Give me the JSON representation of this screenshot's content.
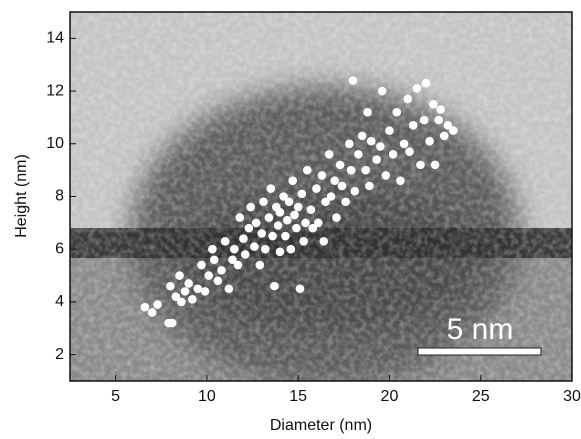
{
  "chart_data": {
    "type": "scatter",
    "xlabel": "Diameter (nm)",
    "ylabel": "Height (nm)",
    "annotation": "5 nm",
    "xlim": [
      2.5,
      30
    ],
    "ylim": [
      1,
      15
    ],
    "xticks": [
      5,
      10,
      15,
      20,
      25,
      30
    ],
    "yticks": [
      2,
      4,
      6,
      8,
      10,
      12,
      14
    ],
    "color": "#ffffff",
    "x": [
      6.6,
      7.0,
      7.3,
      7.9,
      8.1,
      8.0,
      8.3,
      8.6,
      8.8,
      8.5,
      9.0,
      9.2,
      9.5,
      9.7,
      9.9,
      10.1,
      10.3,
      10.4,
      10.6,
      10.8,
      11.0,
      11.2,
      11.4,
      11.5,
      11.7,
      11.8,
      12.0,
      12.1,
      12.3,
      12.4,
      12.6,
      12.7,
      12.9,
      13.0,
      13.1,
      13.2,
      13.4,
      13.5,
      13.6,
      13.7,
      13.8,
      13.9,
      14.0,
      14.0,
      14.2,
      14.3,
      14.4,
      14.5,
      14.6,
      14.7,
      14.8,
      14.9,
      15.0,
      15.1,
      15.2,
      15.3,
      15.4,
      15.5,
      15.7,
      15.8,
      16.0,
      16.1,
      16.3,
      16.4,
      16.5,
      16.7,
      16.8,
      17.0,
      17.1,
      17.3,
      17.4,
      17.6,
      17.8,
      17.9,
      18.0,
      18.1,
      18.3,
      18.5,
      18.7,
      18.9,
      19.0,
      19.3,
      19.5,
      19.8,
      20.0,
      20.2,
      20.4,
      20.6,
      20.8,
      21.0,
      21.1,
      21.3,
      21.5,
      21.7,
      21.9,
      22.0,
      22.2,
      22.4,
      22.5,
      22.7,
      23.0,
      23.2,
      23.5,
      22.8,
      18.8,
      19.6
    ],
    "y": [
      3.8,
      3.6,
      3.9,
      3.2,
      3.2,
      4.6,
      4.2,
      4.0,
      4.4,
      5.0,
      4.7,
      4.1,
      4.5,
      5.4,
      4.4,
      5.0,
      6.0,
      5.6,
      4.8,
      5.2,
      6.3,
      4.5,
      5.6,
      6.0,
      5.4,
      7.2,
      6.4,
      5.8,
      6.8,
      7.6,
      6.1,
      7.0,
      5.4,
      6.6,
      7.8,
      6.0,
      7.2,
      8.3,
      6.5,
      4.6,
      7.6,
      6.9,
      7.4,
      5.9,
      8.0,
      6.5,
      7.1,
      7.8,
      6.0,
      8.6,
      7.3,
      6.8,
      7.6,
      4.5,
      8.1,
      6.3,
      7.0,
      9.0,
      7.5,
      6.8,
      8.3,
      7.0,
      8.8,
      6.3,
      7.8,
      9.6,
      8.0,
      8.6,
      7.2,
      9.2,
      8.4,
      7.8,
      10.0,
      9.0,
      12.4,
      8.2,
      9.6,
      10.3,
      9.0,
      8.4,
      10.1,
      9.4,
      9.9,
      8.8,
      10.5,
      9.6,
      11.2,
      8.6,
      10.0,
      11.7,
      9.7,
      10.7,
      12.1,
      9.2,
      10.9,
      12.3,
      10.1,
      11.5,
      9.2,
      10.9,
      10.3,
      10.7,
      10.5,
      11.3,
      11.2,
      12.0
    ]
  }
}
